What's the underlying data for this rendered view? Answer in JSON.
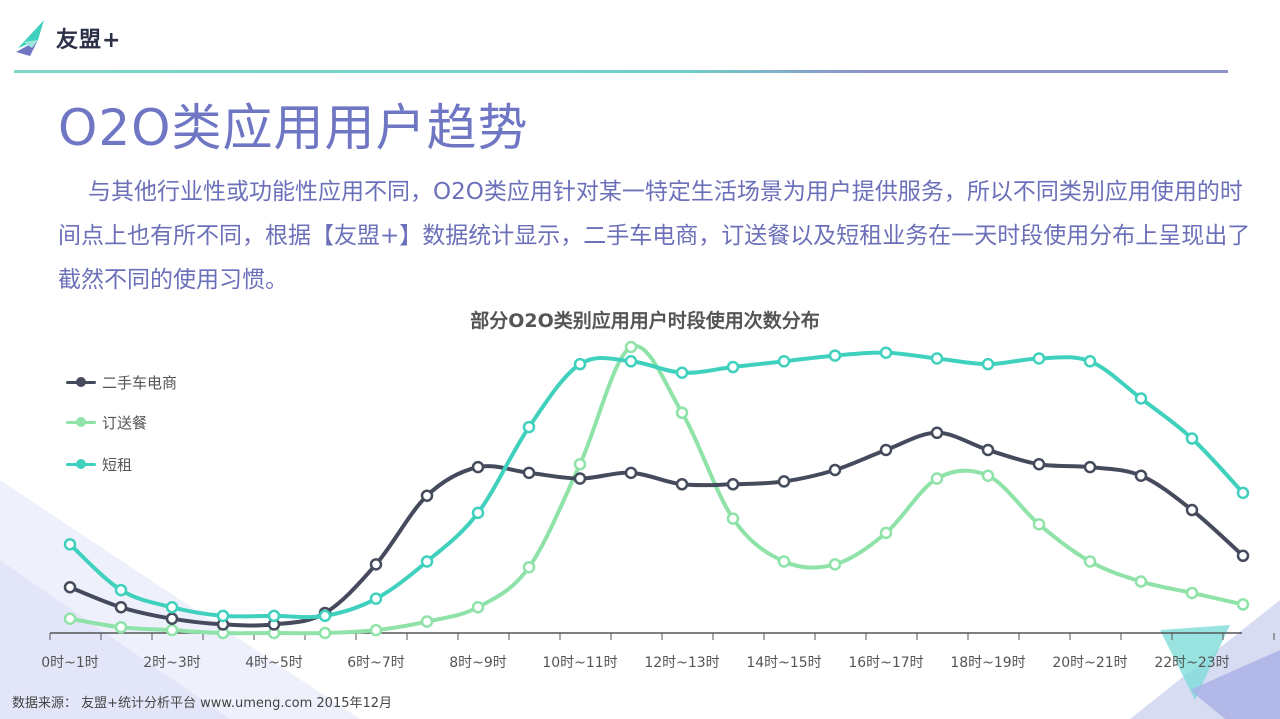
{
  "brand": {
    "name": "友盟+",
    "icon": "umeng-logo-icon"
  },
  "title": "O2O类应用用户趋势",
  "intro": "与其他行业性或功能性应用不同，O2O类应用针对某一特定生活场景为用户提供服务，所以不同类别应用使用的时间点上也有所不同，根据【友盟+】数据统计显示，二手车电商，订送餐以及短租业务在一天时段使用分布上呈现出了截然不同的使用习惯。",
  "source": "数据来源： 友盟+统计分析平台 www.umeng.com 2015年12月",
  "colors": {
    "accent": "#6f77c4",
    "series_dark": "#454b5c",
    "series_light": "#8fe3a8",
    "series_teal": "#3fd1bd"
  },
  "chart_data": {
    "type": "line",
    "title": "部分O2O类别应用用户时段使用次数分布",
    "xlabel": "",
    "ylabel": "",
    "ylim": [
      0,
      100
    ],
    "grid": false,
    "legend_position": "left",
    "x": [
      "0时~1时",
      "1时~2时",
      "2时~3时",
      "3时~4时",
      "4时~5时",
      "5时~6时",
      "6时~7时",
      "7时~8时",
      "8时~9时",
      "9时~10时",
      "10时~11时",
      "11时~12时",
      "12时~13时",
      "13时~14时",
      "14时~15时",
      "15时~16时",
      "16时~17时",
      "17时~18时",
      "18时~19时",
      "19时~20时",
      "20时~21时",
      "21时~22时",
      "22时~23时",
      "23时~24时"
    ],
    "x_tick_labels": [
      "0时~1时",
      "2时~3时",
      "4时~5时",
      "6时~7时",
      "8时~9时",
      "10时~11时",
      "12时~13时",
      "14时~15时",
      "16时~17时",
      "18时~19时",
      "20时~21时",
      "22时~23时"
    ],
    "series": [
      {
        "name": "二手车电商",
        "color": "#454b5c",
        "values": [
          16,
          9,
          5,
          3,
          3,
          7,
          24,
          48,
          58,
          56,
          54,
          56,
          52,
          52,
          53,
          57,
          64,
          70,
          64,
          59,
          58,
          55,
          43,
          27
        ]
      },
      {
        "name": "订送餐",
        "color": "#8fe3a8",
        "values": [
          5,
          2,
          1,
          0,
          0,
          0,
          1,
          4,
          9,
          23,
          59,
          100,
          77,
          40,
          25,
          24,
          35,
          54,
          55,
          38,
          25,
          18,
          14,
          10
        ]
      },
      {
        "name": "短租",
        "color": "#3fd1bd",
        "values": [
          31,
          15,
          9,
          6,
          6,
          6,
          12,
          25,
          42,
          72,
          94,
          95,
          91,
          93,
          95,
          97,
          98,
          96,
          94,
          96,
          95,
          82,
          68,
          49
        ]
      }
    ]
  }
}
